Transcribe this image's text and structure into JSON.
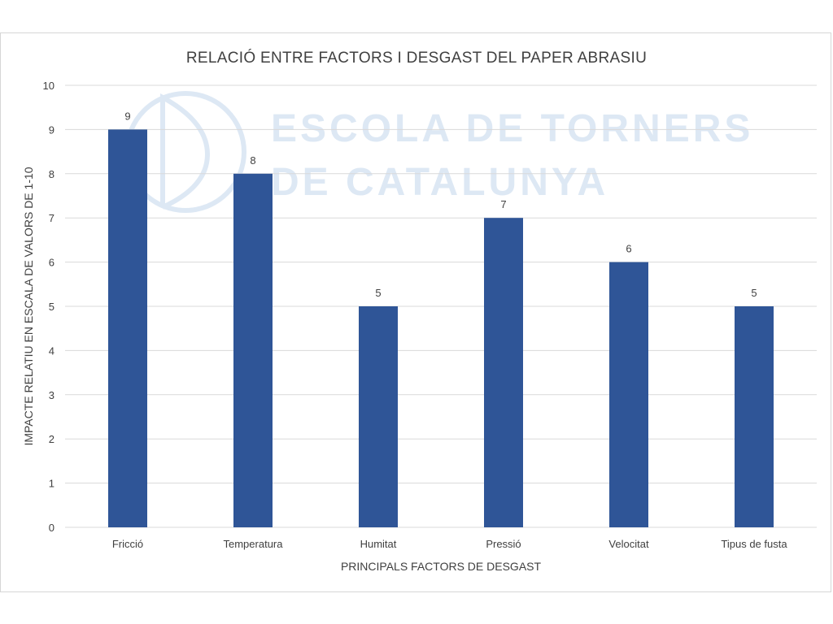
{
  "watermark": {
    "line1": "ESCOLA DE TORNERS",
    "line2": "DE CATALUNYA",
    "color": "#dde8f4"
  },
  "chart_data": {
    "type": "bar",
    "title": "RELACIÓ ENTRE FACTORS I DESGAST DEL PAPER ABRASIU",
    "xlabel": "PRINCIPALS FACTORS DE DESGAST",
    "ylabel": "IMPACTE RELATIU  EN ESCALA DE VALORS DE 1-10",
    "categories": [
      "Fricció",
      "Temperatura",
      "Humitat",
      "Pressió",
      "Velocitat",
      "Tipus de fusta"
    ],
    "values": [
      9,
      8,
      5,
      7,
      6,
      5
    ],
    "ylim": [
      0,
      10
    ],
    "yticks": [
      "0",
      "1",
      "2",
      "3",
      "4",
      "5",
      "6",
      "7",
      "8",
      "9",
      "10"
    ],
    "grid": true,
    "data_labels": true,
    "bar_color": "#2f5597",
    "grid_color": "#d9d9d9"
  }
}
